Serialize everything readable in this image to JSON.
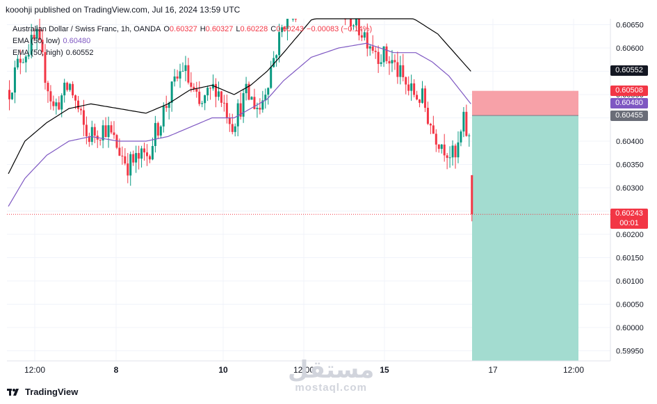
{
  "header": "kooohji published on TradingView.com, Jul 16, 2024 13:59 UTC",
  "legend": {
    "symbol": "Australian Dollar / Swiss Franc, 1h, OANDA",
    "o_label": "O",
    "o": "0.60327",
    "h_label": "H",
    "h": "0.60327",
    "l_label": "L",
    "l": "0.60228",
    "c_label": "C",
    "c": "0.60243",
    "change": "−0.00083 (−0.14%)",
    "ema_low_label": "EMA (50, low)",
    "ema_low": "0.60480",
    "ema_high_label": "EMA (50, high)",
    "ema_high": "0.60552"
  },
  "price_badges": {
    "ema_high": "0.60552",
    "stop": "0.60508",
    "ema_low": "0.60480",
    "entry": "0.60455",
    "last": "0.60243",
    "countdown": "00:01"
  },
  "colors": {
    "up": "#089981",
    "down": "#f23645",
    "ema_high": "#000000",
    "ema_low": "#7e57c2",
    "stop_zone": "#f7a1a8",
    "target_zone": "#a3dcd0"
  },
  "footer": {
    "brand": "TradingView"
  },
  "watermark": {
    "arabic": "مستقل",
    "latin": "mostaql.com"
  },
  "chart_data": {
    "type": "candlestick",
    "title": "Australian Dollar / Swiss Franc, 1h, OANDA",
    "y_ticks": [
      "0.60650",
      "0.60600",
      "0.60550",
      "0.60500",
      "0.60450",
      "0.60400",
      "0.60350",
      "0.60300",
      "0.60250",
      "0.60200",
      "0.60150",
      "0.60100",
      "0.60050",
      "0.60000",
      "0.59950"
    ],
    "ylim": [
      0.5993,
      0.6067
    ],
    "x_ticks": [
      {
        "label": "12:00",
        "bold": false
      },
      {
        "label": "8",
        "bold": true
      },
      {
        "label": "10",
        "bold": true
      },
      {
        "label": "12:00",
        "bold": false
      },
      {
        "label": "15",
        "bold": true
      },
      {
        "label": "17",
        "bold": false
      },
      {
        "label": "12:00",
        "bold": false
      }
    ],
    "candles_close_anchors": [
      [
        0,
        0.6051
      ],
      [
        4,
        0.6058
      ],
      [
        10,
        0.6062
      ],
      [
        16,
        0.6047
      ],
      [
        22,
        0.6052
      ],
      [
        28,
        0.6041
      ],
      [
        35,
        0.6043
      ],
      [
        43,
        0.6035
      ],
      [
        50,
        0.6037
      ],
      [
        57,
        0.6048
      ],
      [
        63,
        0.6056
      ],
      [
        69,
        0.6047
      ],
      [
        75,
        0.6052
      ],
      [
        81,
        0.6044
      ],
      [
        86,
        0.605
      ],
      [
        91,
        0.6047
      ],
      [
        96,
        0.6058
      ],
      [
        101,
        0.6068
      ],
      [
        108,
        0.6072
      ],
      [
        116,
        0.6072
      ],
      [
        122,
        0.6068
      ],
      [
        129,
        0.6063
      ],
      [
        134,
        0.6059
      ],
      [
        139,
        0.6057
      ],
      [
        145,
        0.6051
      ],
      [
        150,
        0.6049
      ],
      [
        154,
        0.6042
      ],
      [
        158,
        0.6039
      ],
      [
        162,
        0.6036
      ],
      [
        165,
        0.6044
      ],
      [
        167,
        0.604
      ],
      [
        168,
        0.6024
      ]
    ],
    "ema_high_anchors": [
      [
        0,
        0.6033
      ],
      [
        6,
        0.604
      ],
      [
        14,
        0.6044
      ],
      [
        22,
        0.6047
      ],
      [
        30,
        0.6048
      ],
      [
        40,
        0.6047
      ],
      [
        50,
        0.6046
      ],
      [
        58,
        0.6048
      ],
      [
        66,
        0.6051
      ],
      [
        74,
        0.6052
      ],
      [
        82,
        0.605
      ],
      [
        88,
        0.6052
      ],
      [
        94,
        0.6055
      ],
      [
        100,
        0.6059
      ],
      [
        110,
        0.6066
      ],
      [
        120,
        0.6068
      ],
      [
        130,
        0.6068
      ],
      [
        140,
        0.6068
      ],
      [
        148,
        0.6066
      ],
      [
        156,
        0.6063
      ],
      [
        162,
        0.6059
      ],
      [
        168,
        0.6055
      ]
    ],
    "ema_low_anchors": [
      [
        0,
        0.6026
      ],
      [
        6,
        0.6032
      ],
      [
        14,
        0.6037
      ],
      [
        22,
        0.604
      ],
      [
        30,
        0.6041
      ],
      [
        40,
        0.604
      ],
      [
        50,
        0.604
      ],
      [
        58,
        0.6041
      ],
      [
        66,
        0.6043
      ],
      [
        74,
        0.6045
      ],
      [
        82,
        0.6045
      ],
      [
        88,
        0.6047
      ],
      [
        94,
        0.6049
      ],
      [
        100,
        0.6053
      ],
      [
        110,
        0.6058
      ],
      [
        120,
        0.606
      ],
      [
        130,
        0.6061
      ],
      [
        140,
        0.6059
      ],
      [
        148,
        0.6059
      ],
      [
        154,
        0.6057
      ],
      [
        160,
        0.6054
      ],
      [
        168,
        0.6048
      ]
    ],
    "position": {
      "entry": 0.60455,
      "stop": 0.60508,
      "target_below_axis": true
    },
    "last_price": 0.60243
  }
}
